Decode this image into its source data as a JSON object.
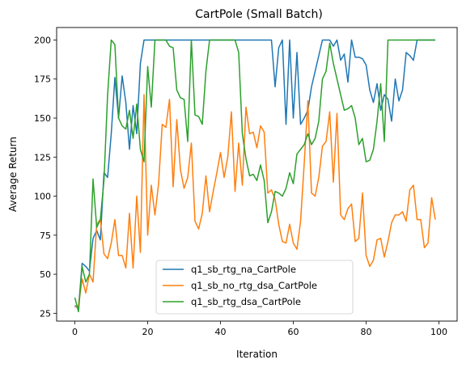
{
  "chart_data": {
    "type": "line",
    "title": "CartPole (Small Batch)",
    "xlabel": "Iteration",
    "ylabel": "Average Return",
    "xlim": [
      -5,
      105
    ],
    "ylim": [
      20,
      208
    ],
    "xticks": [
      "0",
      "20",
      "40",
      "60",
      "80",
      "100"
    ],
    "xtick_values": [
      0,
      20,
      40,
      60,
      80,
      100
    ],
    "yticks": [
      "25",
      "50",
      "75",
      "100",
      "125",
      "150",
      "175",
      "200"
    ],
    "ytick_values": [
      25,
      50,
      75,
      100,
      125,
      150,
      175,
      200
    ],
    "grid": false,
    "legend_position": "lower-center",
    "series": [
      {
        "name": "q1_sb_rtg_na_CartPole",
        "color": "#1f77b4",
        "x": [
          0,
          1,
          2,
          3,
          4,
          5,
          6,
          7,
          8,
          9,
          10,
          11,
          12,
          13,
          14,
          15,
          16,
          17,
          18,
          19,
          20,
          21,
          22,
          23,
          24,
          25,
          26,
          27,
          28,
          29,
          30,
          31,
          32,
          33,
          34,
          35,
          36,
          37,
          38,
          39,
          40,
          41,
          42,
          43,
          44,
          45,
          46,
          47,
          48,
          49,
          50,
          51,
          52,
          53,
          54,
          55,
          56,
          57,
          58,
          59,
          60,
          61,
          62,
          63,
          64,
          65,
          66,
          67,
          68,
          69,
          70,
          71,
          72,
          73,
          74,
          75,
          76,
          77,
          78,
          79,
          80,
          81,
          82,
          83,
          84,
          85,
          86,
          87,
          88,
          89,
          90,
          91,
          92,
          93,
          94,
          95,
          96,
          97,
          98,
          99
        ],
        "values": [
          30,
          28,
          57,
          55,
          52,
          73,
          78,
          72,
          115,
          112,
          140,
          176,
          150,
          177,
          160,
          130,
          158,
          140,
          185,
          200,
          200,
          200,
          200,
          200,
          200,
          200,
          200,
          200,
          200,
          200,
          200,
          200,
          200,
          200,
          200,
          200,
          200,
          200,
          200,
          200,
          200,
          200,
          200,
          200,
          200,
          200,
          200,
          200,
          200,
          200,
          200,
          200,
          200,
          200,
          200,
          170,
          195,
          200,
          146,
          200,
          150,
          192,
          146,
          150,
          155,
          170,
          180,
          190,
          200,
          200,
          200,
          196,
          200,
          187,
          191,
          173,
          200,
          189,
          189,
          188,
          184,
          168,
          160,
          172,
          155,
          165,
          162,
          148,
          175,
          161,
          168,
          192,
          190,
          187,
          200,
          200,
          200,
          200,
          200,
          200
        ]
      },
      {
        "name": "q1_sb_no_rtg_dsa_CartPole",
        "color": "#ff7f0e",
        "x": [
          0,
          1,
          2,
          3,
          4,
          5,
          6,
          7,
          8,
          9,
          10,
          11,
          12,
          13,
          14,
          15,
          16,
          17,
          18,
          19,
          20,
          21,
          22,
          23,
          24,
          25,
          26,
          27,
          28,
          29,
          30,
          31,
          32,
          33,
          34,
          35,
          36,
          37,
          38,
          39,
          40,
          41,
          42,
          43,
          44,
          45,
          46,
          47,
          48,
          49,
          50,
          51,
          52,
          53,
          54,
          55,
          56,
          57,
          58,
          59,
          60,
          61,
          62,
          63,
          64,
          65,
          66,
          67,
          68,
          69,
          70,
          71,
          72,
          73,
          74,
          75,
          76,
          77,
          78,
          79,
          80,
          81,
          82,
          83,
          84,
          85,
          86,
          87,
          88,
          89,
          90,
          91,
          92,
          93,
          94,
          95,
          96,
          97,
          98,
          99
        ],
        "values": [
          29,
          30,
          47,
          38,
          50,
          45,
          82,
          85,
          63,
          60,
          70,
          85,
          62,
          62,
          54,
          89,
          54,
          100,
          64,
          165,
          75,
          107,
          88,
          108,
          146,
          144,
          162,
          106,
          149,
          117,
          105,
          112,
          134,
          84,
          79,
          89,
          113,
          90,
          103,
          115,
          128,
          112,
          125,
          154,
          103,
          134,
          107,
          157,
          140,
          141,
          131,
          145,
          141,
          102,
          104,
          98,
          82,
          71,
          70,
          82,
          70,
          66,
          84,
          121,
          161,
          102,
          100,
          112,
          132,
          135,
          154,
          109,
          153,
          88,
          85,
          92,
          95,
          71,
          73,
          102,
          62,
          55,
          59,
          72,
          73,
          61,
          71,
          83,
          88,
          88,
          90,
          84,
          104,
          107,
          85,
          85,
          67,
          70,
          99,
          85
        ]
      },
      {
        "name": "q1_sb_rtg_dsa_CartPole",
        "color": "#2ca02c",
        "x": [
          0,
          1,
          2,
          3,
          4,
          5,
          6,
          7,
          8,
          9,
          10,
          11,
          12,
          13,
          14,
          15,
          16,
          17,
          18,
          19,
          20,
          21,
          22,
          23,
          24,
          25,
          26,
          27,
          28,
          29,
          30,
          31,
          32,
          33,
          34,
          35,
          36,
          37,
          38,
          39,
          40,
          41,
          42,
          43,
          44,
          45,
          46,
          47,
          48,
          49,
          50,
          51,
          52,
          53,
          54,
          55,
          56,
          57,
          58,
          59,
          60,
          61,
          62,
          63,
          64,
          65,
          66,
          67,
          68,
          69,
          70,
          71,
          72,
          73,
          74,
          75,
          76,
          77,
          78,
          79,
          80,
          81,
          82,
          83,
          84,
          85,
          86,
          87,
          88,
          89,
          90,
          91,
          92,
          93,
          94,
          95,
          96,
          97,
          98,
          99
        ],
        "values": [
          35,
          26,
          55,
          45,
          50,
          111,
          80,
          85,
          110,
          165,
          200,
          197,
          150,
          145,
          143,
          155,
          137,
          159,
          130,
          122,
          183,
          157,
          200,
          200,
          200,
          200,
          196,
          195,
          168,
          163,
          162,
          135,
          200,
          152,
          151,
          146,
          180,
          200,
          200,
          200,
          200,
          200,
          200,
          200,
          200,
          192,
          140,
          124,
          113,
          114,
          110,
          120,
          110,
          83,
          90,
          103,
          102,
          100,
          105,
          115,
          108,
          127,
          130,
          133,
          140,
          133,
          137,
          148,
          175,
          180,
          198,
          185,
          175,
          165,
          155,
          156,
          158,
          150,
          133,
          137,
          122,
          123,
          130,
          148,
          172,
          135,
          200,
          200,
          200,
          200,
          200,
          200,
          200,
          200,
          200,
          200,
          200,
          200,
          200,
          200
        ]
      }
    ]
  }
}
